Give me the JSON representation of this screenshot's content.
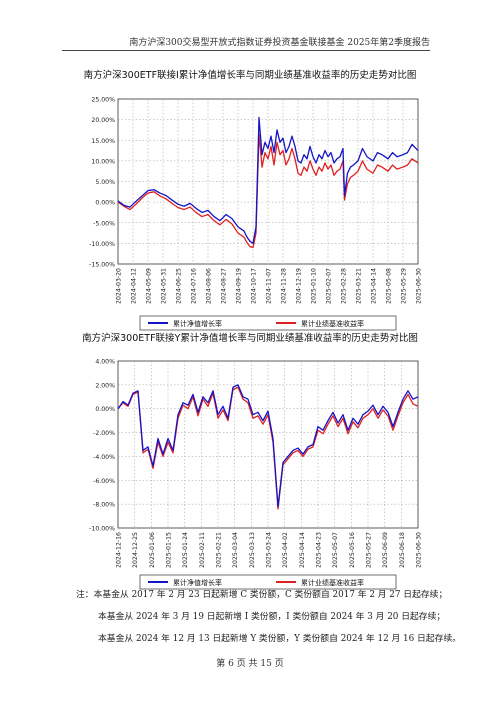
{
  "header": {
    "title": "南方沪深300交易型开放式指数证券投资基金联接基金 2025年第2季度报告"
  },
  "chart_data": [
    {
      "type": "line",
      "title": "南方沪深300ETF联接I累计净值增长率与同期业绩基准收益率的历史走势对比图",
      "ylim": [
        -15,
        25
      ],
      "yticks": [
        -15,
        -10,
        -5,
        0,
        5,
        10,
        15,
        20,
        25
      ],
      "ytick_labels": [
        "-15.00%",
        "-10.00%",
        "-5.00%",
        "0.00%",
        "5.00%",
        "10.00%",
        "15.00%",
        "20.00%",
        "25.00%"
      ],
      "x_tick_labels": [
        "2024-03-20",
        "2024-04-12",
        "2024-05-09",
        "2024-05-31",
        "2024-06-25",
        "2024-07-16",
        "2024-08-06",
        "2024-08-27",
        "2024-09-19",
        "2024-10-17",
        "2024-11-07",
        "2024-11-28",
        "2024-12-19",
        "2025-01-10",
        "2025-02-07",
        "2025-02-28",
        "2025-03-21",
        "2025-04-14",
        "2025-05-08",
        "2025-05-29",
        "2025-06-30"
      ],
      "grid": "dotted",
      "legend_position": "bottom",
      "series": [
        {
          "name": "累计净值增长率",
          "color": "#1414c8",
          "x": [
            0,
            0.4,
            0.8,
            1.2,
            1.6,
            2,
            2.4,
            2.8,
            3.2,
            3.6,
            4,
            4.4,
            4.8,
            5.2,
            5.6,
            6,
            6.4,
            6.8,
            7.2,
            7.6,
            8,
            8.2,
            8.4,
            8.6,
            8.8,
            9,
            9.2,
            9.4,
            9.6,
            9.8,
            10,
            10.2,
            10.4,
            10.6,
            10.8,
            11,
            11.2,
            11.4,
            11.6,
            11.8,
            12,
            12.2,
            12.4,
            12.6,
            12.8,
            13,
            13.2,
            13.4,
            13.6,
            13.8,
            14,
            14.2,
            14.4,
            14.6,
            14.8,
            15,
            15.1,
            15.3,
            15.5,
            15.7,
            16,
            16.3,
            16.6,
            17,
            17.3,
            17.6,
            18,
            18.3,
            18.6,
            19,
            19.3,
            19.6,
            20
          ],
          "values": [
            0.3,
            -0.8,
            -1.2,
            0.2,
            1.5,
            2.8,
            3.0,
            2.2,
            1.6,
            0.5,
            -0.5,
            -1.0,
            -0.3,
            -1.5,
            -2.5,
            -2.0,
            -3.5,
            -4.5,
            -3.0,
            -4.0,
            -6.0,
            -6.5,
            -7.0,
            -8.5,
            -9.5,
            -10.0,
            -6.0,
            20.5,
            11.5,
            14.5,
            13.0,
            16.0,
            12.0,
            17.5,
            14.5,
            15.5,
            12.0,
            13.5,
            16.0,
            13.5,
            10.0,
            9.5,
            11.5,
            10.5,
            13.5,
            11.0,
            9.5,
            11.5,
            10.5,
            12.5,
            11.0,
            12.0,
            9.5,
            10.5,
            11.0,
            13.0,
            1.5,
            7.0,
            8.5,
            9.0,
            10.0,
            13.0,
            11.0,
            10.0,
            12.0,
            11.5,
            10.5,
            12.0,
            11.0,
            11.5,
            12.0,
            14.0,
            12.5
          ]
        },
        {
          "name": "累计业绩基准收益率",
          "color": "#e02020",
          "x": [
            0,
            0.4,
            0.8,
            1.2,
            1.6,
            2,
            2.4,
            2.8,
            3.2,
            3.6,
            4,
            4.4,
            4.8,
            5.2,
            5.6,
            6,
            6.4,
            6.8,
            7.2,
            7.6,
            8,
            8.2,
            8.4,
            8.6,
            8.8,
            9,
            9.2,
            9.4,
            9.6,
            9.8,
            10,
            10.2,
            10.4,
            10.6,
            10.8,
            11,
            11.2,
            11.4,
            11.6,
            11.8,
            12,
            12.2,
            12.4,
            12.6,
            12.8,
            13,
            13.2,
            13.4,
            13.6,
            13.8,
            14,
            14.2,
            14.4,
            14.6,
            14.8,
            15,
            15.1,
            15.3,
            15.5,
            15.7,
            16,
            16.3,
            16.6,
            17,
            17.3,
            17.6,
            18,
            18.3,
            18.6,
            19,
            19.3,
            19.6,
            20
          ],
          "values": [
            0.0,
            -1.0,
            -1.8,
            -0.5,
            1.0,
            2.2,
            2.5,
            1.5,
            0.8,
            -0.3,
            -1.3,
            -1.8,
            -1.2,
            -2.5,
            -3.5,
            -3.0,
            -4.5,
            -5.5,
            -4.2,
            -5.3,
            -7.5,
            -8.0,
            -8.5,
            -9.8,
            -10.8,
            -11.0,
            -7.5,
            16.5,
            8.5,
            12.0,
            10.5,
            13.5,
            9.0,
            14.5,
            11.5,
            12.5,
            9.0,
            10.5,
            13.0,
            10.5,
            7.0,
            6.5,
            8.5,
            7.5,
            10.0,
            8.0,
            6.5,
            8.5,
            7.5,
            9.5,
            8.0,
            9.0,
            6.5,
            7.5,
            8.0,
            10.0,
            0.5,
            4.5,
            6.0,
            6.5,
            7.5,
            10.0,
            8.0,
            7.0,
            9.0,
            8.5,
            7.5,
            9.0,
            8.0,
            8.5,
            9.0,
            10.5,
            9.5
          ]
        }
      ]
    },
    {
      "type": "line",
      "title": "南方沪深300ETF联接Y累计净值增长率与同期业绩基准收益率的历史走势对比图",
      "ylim": [
        -10,
        4
      ],
      "yticks": [
        -10,
        -8,
        -6,
        -4,
        -2,
        0,
        2,
        4
      ],
      "ytick_labels": [
        "-10.00%",
        "-8.00%",
        "-6.00%",
        "-4.00%",
        "-2.00%",
        "0.00%",
        "2.00%",
        "4.00%"
      ],
      "x_tick_labels": [
        "2024-12-16",
        "2024-12-25",
        "2025-01-06",
        "2025-01-15",
        "2025-01-24",
        "2025-02-11",
        "2025-02-21",
        "2025-03-04",
        "2025-03-13",
        "2025-03-24",
        "2025-04-02",
        "2025-04-14",
        "2025-04-23",
        "2025-05-07",
        "2025-05-16",
        "2025-05-27",
        "2025-06-09",
        "2025-06-18",
        "2025-06-30"
      ],
      "grid": "dotted",
      "legend_position": "bottom",
      "series": [
        {
          "name": "累计净值增长率",
          "color": "#1414c8",
          "x": [
            0,
            0.3,
            0.6,
            0.9,
            1.2,
            1.5,
            1.8,
            2.1,
            2.4,
            2.7,
            3.0,
            3.3,
            3.6,
            3.9,
            4.2,
            4.5,
            4.8,
            5.1,
            5.4,
            5.7,
            6.0,
            6.3,
            6.6,
            6.9,
            7.2,
            7.5,
            7.8,
            8.1,
            8.4,
            8.7,
            9.0,
            9.3,
            9.6,
            9.9,
            10.2,
            10.5,
            10.8,
            11.1,
            11.4,
            11.7,
            12.0,
            12.3,
            12.6,
            12.9,
            13.2,
            13.5,
            13.8,
            14.1,
            14.4,
            14.7,
            15.0,
            15.3,
            15.6,
            15.9,
            16.2,
            16.5,
            16.8,
            17.1,
            17.4,
            17.7,
            18.0
          ],
          "values": [
            0.0,
            0.6,
            0.3,
            1.3,
            1.5,
            -3.5,
            -3.2,
            -4.8,
            -2.5,
            -3.8,
            -2.5,
            -3.5,
            -0.5,
            0.5,
            0.3,
            1.2,
            -0.3,
            1.0,
            0.5,
            1.5,
            -0.5,
            0.2,
            -0.8,
            1.8,
            2.0,
            1.0,
            0.8,
            -0.5,
            -0.3,
            -1.0,
            -0.2,
            -2.5,
            -8.2,
            -4.5,
            -4.0,
            -3.5,
            -3.3,
            -3.8,
            -3.2,
            -3.0,
            -1.5,
            -1.8,
            -1.0,
            -0.3,
            -1.2,
            -0.5,
            -1.8,
            -0.8,
            -1.3,
            -0.5,
            -0.2,
            0.3,
            -0.5,
            0.2,
            -0.3,
            -1.5,
            -0.3,
            0.8,
            1.5,
            0.8,
            1.0
          ]
        },
        {
          "name": "累计业绩基准收益率",
          "color": "#e02020",
          "x": [
            0,
            0.3,
            0.6,
            0.9,
            1.2,
            1.5,
            1.8,
            2.1,
            2.4,
            2.7,
            3.0,
            3.3,
            3.6,
            3.9,
            4.2,
            4.5,
            4.8,
            5.1,
            5.4,
            5.7,
            6.0,
            6.3,
            6.6,
            6.9,
            7.2,
            7.5,
            7.8,
            8.1,
            8.4,
            8.7,
            9.0,
            9.3,
            9.6,
            9.9,
            10.2,
            10.5,
            10.8,
            11.1,
            11.4,
            11.7,
            12.0,
            12.3,
            12.6,
            12.9,
            13.2,
            13.5,
            13.8,
            14.1,
            14.4,
            14.7,
            15.0,
            15.3,
            15.6,
            15.9,
            16.2,
            16.5,
            16.8,
            17.1,
            17.4,
            17.7,
            18.0
          ],
          "values": [
            0.0,
            0.5,
            0.2,
            1.2,
            1.4,
            -3.7,
            -3.4,
            -5.0,
            -2.8,
            -4.0,
            -2.8,
            -3.7,
            -0.8,
            0.3,
            0.0,
            1.0,
            -0.6,
            0.8,
            0.2,
            1.3,
            -0.8,
            -0.1,
            -1.0,
            1.6,
            1.8,
            0.8,
            0.5,
            -0.8,
            -0.6,
            -1.3,
            -0.5,
            -2.8,
            -8.4,
            -4.7,
            -4.2,
            -3.7,
            -3.5,
            -4.0,
            -3.4,
            -3.2,
            -1.8,
            -2.1,
            -1.3,
            -0.6,
            -1.5,
            -0.8,
            -2.1,
            -1.1,
            -1.6,
            -0.8,
            -0.5,
            0.0,
            -0.8,
            -0.1,
            -0.6,
            -1.8,
            -0.6,
            0.5,
            1.2,
            0.4,
            0.2
          ]
        }
      ]
    }
  ],
  "notes": {
    "line1": "注：本基金从 2017 年 2 月 23 日起新增 C 类份额，C 类份额自 2017 年 2 月 27 日起存续；",
    "line2": "本基金从 2024 年 3 月 19 日起新增 I 类份额，I 类份额自 2024 年 3 月 20 日起存续；",
    "line3": "本基金从 2024 年 12 月 13 日起新增 Y 类份额，Y 类份额自 2024 年 12 月 16 日起存续。"
  },
  "footer": {
    "page": "第 6 页 共 15 页"
  }
}
